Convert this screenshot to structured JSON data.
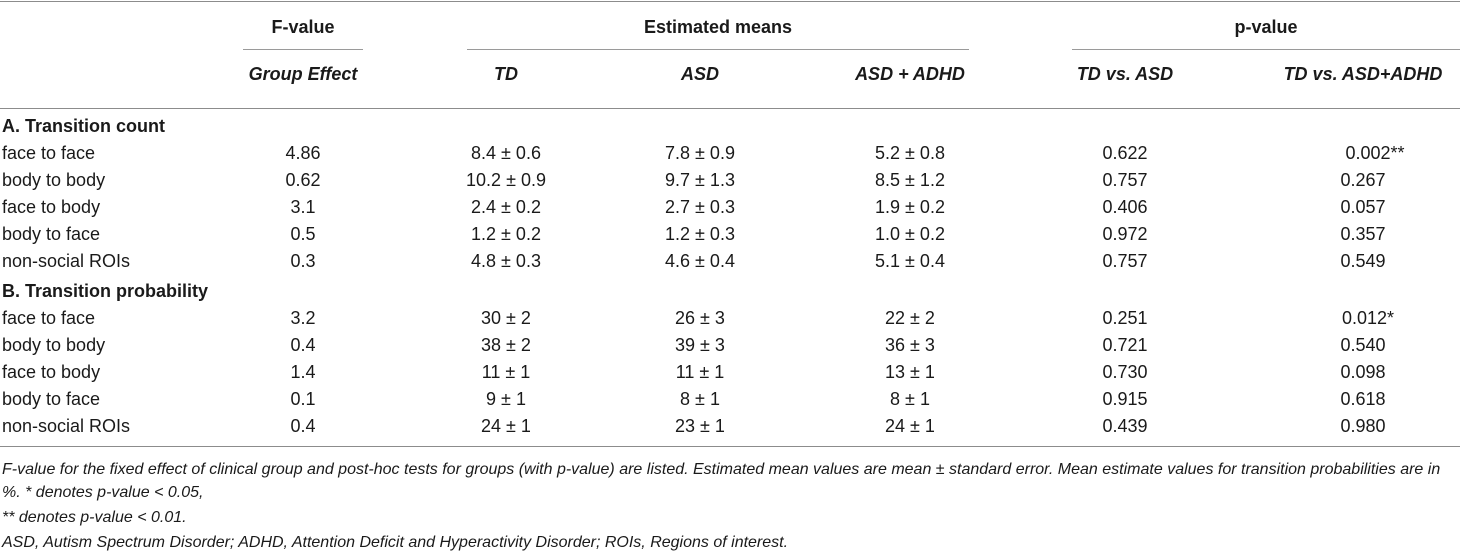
{
  "headers": {
    "fvalue": "F-value",
    "estimated_means": "Estimated means",
    "pvalue": "p-value",
    "group_effect": "Group Effect",
    "td": "TD",
    "asd": "ASD",
    "asd_adhd": "ASD + ADHD",
    "td_vs_asd": "TD vs. ASD",
    "td_vs_asd_adhd": "TD vs. ASD+ADHD"
  },
  "sections": [
    {
      "title": "A. Transition count",
      "rows": [
        {
          "label": "face to face",
          "f": "4.86",
          "td": "8.4 ± 0.6",
          "asd": "7.8 ± 0.9",
          "asd_adhd": "5.2 ± 0.8",
          "p_asd": "0.622",
          "p_asd_adhd": "0.002**"
        },
        {
          "label": "body to body",
          "f": "0.62",
          "td": "10.2 ± 0.9",
          "asd": "9.7 ± 1.3",
          "asd_adhd": "8.5 ± 1.2",
          "p_asd": "0.757",
          "p_asd_adhd": "0.267"
        },
        {
          "label": "face to body",
          "f": "3.1",
          "td": "2.4 ± 0.2",
          "asd": "2.7 ± 0.3",
          "asd_adhd": "1.9 ± 0.2",
          "p_asd": "0.406",
          "p_asd_adhd": "0.057"
        },
        {
          "label": "body to face",
          "f": "0.5",
          "td": "1.2 ± 0.2",
          "asd": "1.2 ± 0.3",
          "asd_adhd": "1.0 ± 0.2",
          "p_asd": "0.972",
          "p_asd_adhd": "0.357"
        },
        {
          "label": "non-social ROIs",
          "f": "0.3",
          "td": "4.8 ± 0.3",
          "asd": "4.6 ± 0.4",
          "asd_adhd": "5.1 ± 0.4",
          "p_asd": "0.757",
          "p_asd_adhd": "0.549"
        }
      ]
    },
    {
      "title": "B. Transition probability",
      "rows": [
        {
          "label": "face to face",
          "f": "3.2",
          "td": "30 ± 2",
          "asd": "26 ± 3",
          "asd_adhd": "22 ± 2",
          "p_asd": "0.251",
          "p_asd_adhd": "0.012*"
        },
        {
          "label": "body to body",
          "f": "0.4",
          "td": "38 ± 2",
          "asd": "39 ± 3",
          "asd_adhd": "36 ± 3",
          "p_asd": "0.721",
          "p_asd_adhd": "0.540"
        },
        {
          "label": "face to body",
          "f": "1.4",
          "td": "11 ± 1",
          "asd": "11 ± 1",
          "asd_adhd": "13 ± 1",
          "p_asd": "0.730",
          "p_asd_adhd": "0.098"
        },
        {
          "label": "body to face",
          "f": "0.1",
          "td": "9 ± 1",
          "asd": "8 ± 1",
          "asd_adhd": "8 ± 1",
          "p_asd": "0.915",
          "p_asd_adhd": "0.618"
        },
        {
          "label": "non-social ROIs",
          "f": "0.4",
          "td": "24 ± 1",
          "asd": "23 ± 1",
          "asd_adhd": "24 ± 1",
          "p_asd": "0.439",
          "p_asd_adhd": "0.980"
        }
      ]
    }
  ],
  "footnotes": [
    "F-value for the fixed effect of clinical group and post-hoc tests for groups (with p-value) are listed. Estimated mean values are mean ± standard error. Mean estimate values for transition probabilities are in %. * denotes p-value < 0.05,",
    "** denotes p-value < 0.01.",
    "ASD, Autism Spectrum Disorder; ADHD, Attention Deficit and Hyperactivity Disorder; ROIs, Regions of interest."
  ]
}
